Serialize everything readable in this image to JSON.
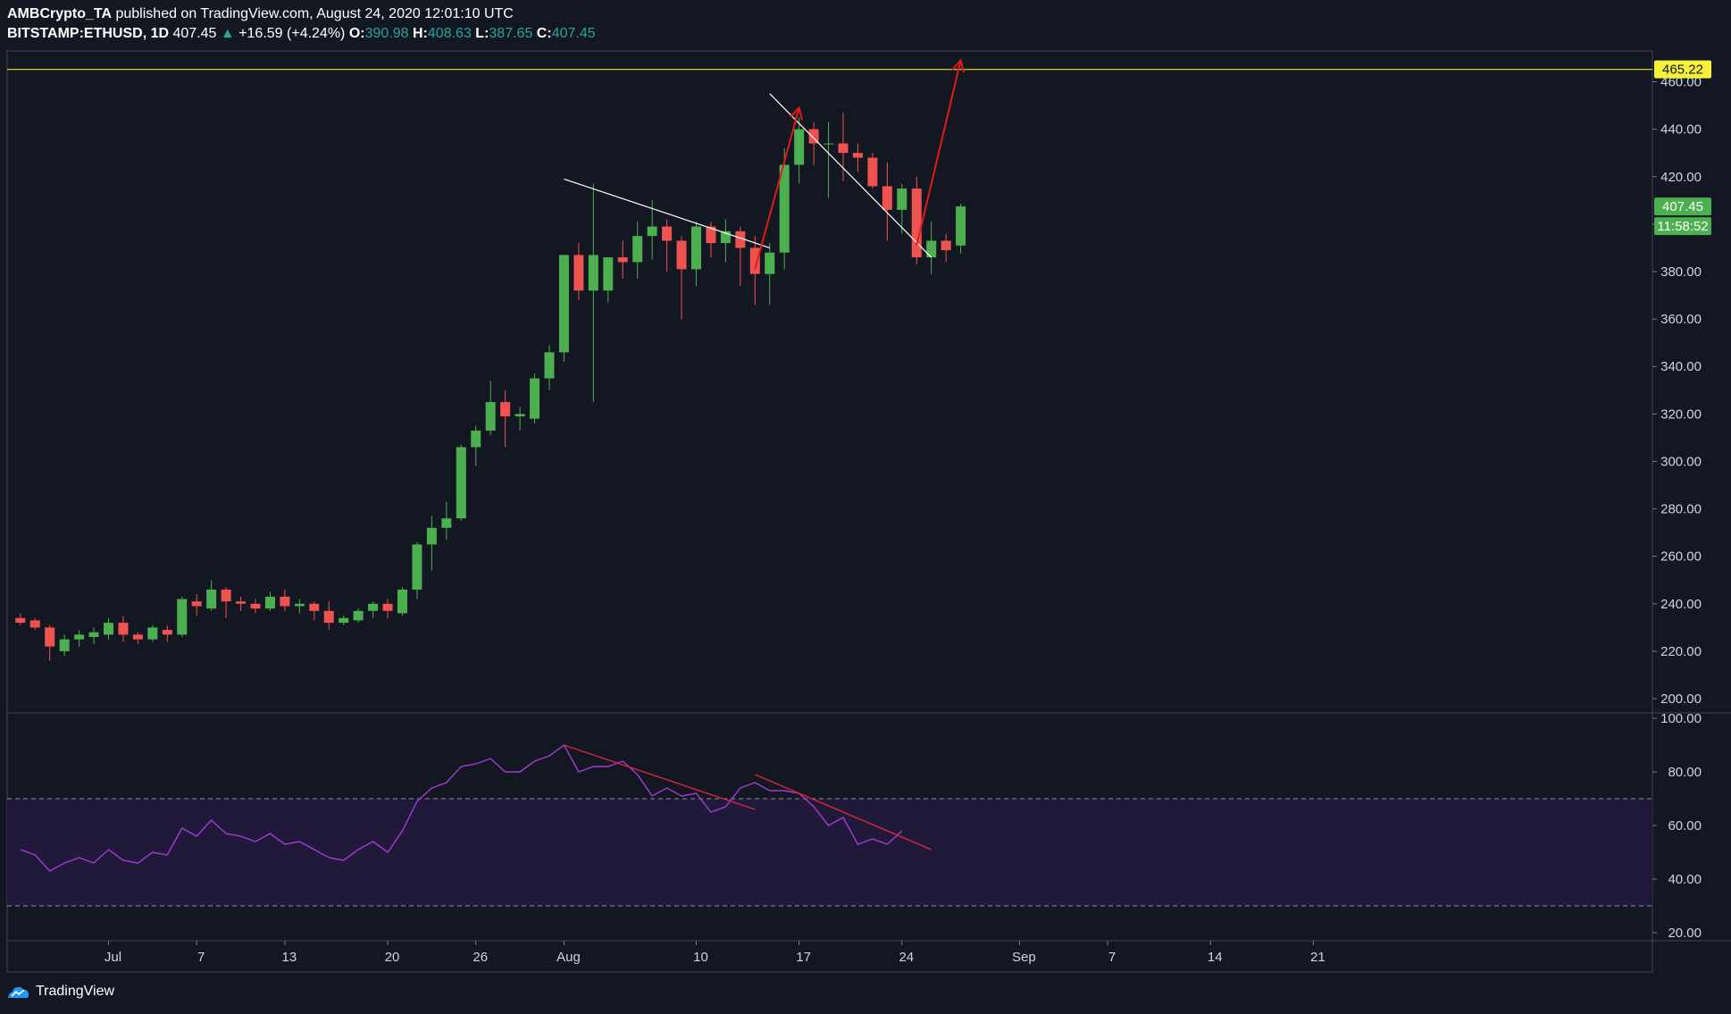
{
  "header": {
    "author": "AMBCrypto_TA",
    "published_text": "published on TradingView.com, August 24, 2020 12:01:10 UTC",
    "symbol": "BITSTAMP:ETHUSD, 1D",
    "last": "407.45",
    "change_arrow": "▲",
    "change": "+16.59 (+4.24%)",
    "o_label": "O:",
    "o_value": "390.98",
    "h_label": "H:",
    "h_value": "408.63",
    "l_label": "L:",
    "l_value": "387.65",
    "c_label": "C:",
    "c_value": "407.45"
  },
  "footer": {
    "brand": "TradingView",
    "logo_icon": "tradingview-logo-icon"
  },
  "colors": {
    "background": "#131722",
    "up": "#4caf50",
    "down": "#ef5350",
    "rsi_line": "#a33ad6",
    "rsi_band": "#21193a",
    "resistance": "#f5e623",
    "arrow": "#e21919",
    "trendline": "#ffffff",
    "rsi_trendline": "#d8263c"
  },
  "chart_data": {
    "type": "candlestick",
    "price_axis": {
      "ticks": [
        "460.00",
        "440.00",
        "420.00",
        "400.00",
        "380.00",
        "360.00",
        "340.00",
        "320.00",
        "300.00",
        "280.00",
        "260.00",
        "240.00",
        "220.00",
        "200.00"
      ],
      "range": [
        194,
        473
      ]
    },
    "time_axis": {
      "ticks": [
        {
          "label": "Jul",
          "day": 0
        },
        {
          "label": "7",
          "day": 6
        },
        {
          "label": "13",
          "day": 12
        },
        {
          "label": "20",
          "day": 19
        },
        {
          "label": "26",
          "day": 25
        },
        {
          "label": "Aug",
          "day": 31
        },
        {
          "label": "10",
          "day": 40
        },
        {
          "label": "17",
          "day": 47
        },
        {
          "label": "24",
          "day": 54
        },
        {
          "label": "Sep",
          "day": 62
        },
        {
          "label": "7",
          "day": 68
        },
        {
          "label": "14",
          "day": 75
        },
        {
          "label": "21",
          "day": 82
        }
      ]
    },
    "candles_start_day": -6,
    "candles": [
      [
        234,
        236,
        231,
        232
      ],
      [
        233,
        234,
        229,
        230
      ],
      [
        230,
        231,
        216,
        222
      ],
      [
        220,
        227,
        218,
        225
      ],
      [
        225,
        229,
        222,
        227
      ],
      [
        226,
        230,
        223,
        228
      ],
      [
        227,
        234,
        225,
        232
      ],
      [
        232,
        235,
        224,
        227
      ],
      [
        227,
        228,
        223,
        225
      ],
      [
        225,
        231,
        224,
        230
      ],
      [
        229,
        231,
        224,
        227
      ],
      [
        227,
        243,
        226,
        242
      ],
      [
        241,
        244,
        235,
        239
      ],
      [
        238,
        250,
        237,
        246
      ],
      [
        246,
        247,
        234,
        241
      ],
      [
        241,
        243,
        237,
        240
      ],
      [
        240,
        242,
        236,
        238
      ],
      [
        238,
        245,
        237,
        243
      ],
      [
        243,
        246,
        237,
        239
      ],
      [
        239,
        242,
        236,
        240
      ],
      [
        240,
        241,
        233,
        237
      ],
      [
        237,
        241,
        229,
        232
      ],
      [
        232,
        235,
        231,
        234
      ],
      [
        233,
        238,
        232,
        237
      ],
      [
        237,
        241,
        234,
        240
      ],
      [
        240,
        242,
        234,
        237
      ],
      [
        236,
        247,
        235,
        246
      ],
      [
        246,
        266,
        242,
        265
      ],
      [
        265,
        277,
        254,
        272
      ],
      [
        272,
        283,
        267,
        276
      ],
      [
        276,
        307,
        275,
        306
      ],
      [
        306,
        315,
        298,
        313
      ],
      [
        313,
        334,
        311,
        325
      ],
      [
        325,
        330,
        306,
        319
      ],
      [
        319,
        323,
        313,
        320
      ],
      [
        318,
        337,
        316,
        335
      ],
      [
        335,
        349,
        330,
        346
      ],
      [
        346,
        387,
        342,
        387
      ],
      [
        387,
        392,
        368,
        372
      ],
      [
        372,
        417,
        325,
        387
      ],
      [
        372,
        386,
        367,
        386
      ],
      [
        386,
        393,
        377,
        384
      ],
      [
        384,
        401,
        377,
        395
      ],
      [
        395,
        410,
        385,
        399
      ],
      [
        399,
        402,
        380,
        393
      ],
      [
        393,
        395,
        360,
        381
      ],
      [
        381,
        401,
        374,
        399
      ],
      [
        399,
        401,
        386,
        392
      ],
      [
        392,
        402,
        384,
        397
      ],
      [
        397,
        399,
        374,
        390
      ],
      [
        390,
        395,
        366,
        379
      ],
      [
        379,
        392,
        366,
        388
      ],
      [
        388,
        432,
        381,
        425
      ],
      [
        425,
        445,
        417,
        440
      ],
      [
        440,
        443,
        425,
        434
      ],
      [
        434,
        443,
        411,
        434
      ],
      [
        434,
        447,
        418,
        430
      ],
      [
        430,
        434,
        422,
        428
      ],
      [
        428,
        430,
        415,
        416
      ],
      [
        416,
        426,
        393,
        406
      ],
      [
        406,
        417,
        396,
        415
      ],
      [
        415,
        420,
        383,
        386
      ],
      [
        386,
        401,
        379,
        393
      ],
      [
        393,
        396,
        384,
        389
      ],
      [
        390.98,
        408.63,
        387.65,
        407.45
      ]
    ],
    "last_price_tag": "407.45",
    "countdown_tag": "11:58:52",
    "resistance_level": 465.22,
    "resistance_tag": "465.22",
    "trendlines": [
      {
        "from": [
          31,
          419
        ],
        "to": [
          45,
          390
        ]
      },
      {
        "from": [
          45,
          455
        ],
        "to": [
          56,
          386
        ]
      }
    ],
    "arrows": [
      {
        "from": [
          44,
          381
        ],
        "to": [
          47,
          449
        ]
      },
      {
        "from": [
          55,
          391
        ],
        "to": [
          58,
          469
        ]
      }
    ],
    "rsi": {
      "axis_ticks": [
        "100.00",
        "80.00",
        "60.00",
        "40.00",
        "20.00"
      ],
      "range": [
        17,
        102
      ],
      "upper_band": 70,
      "lower_band": 30,
      "values": [
        51,
        49,
        43,
        46,
        48,
        46,
        51,
        47,
        46,
        50,
        49,
        59,
        56,
        62,
        57,
        56,
        54,
        57,
        53,
        54,
        51,
        48,
        47,
        51,
        54,
        50,
        58,
        69,
        74,
        76,
        82,
        83,
        85,
        80,
        80,
        84,
        86,
        90,
        80,
        82,
        82,
        84,
        79,
        71,
        74,
        71,
        72,
        65,
        67,
        74,
        76,
        73,
        73,
        72,
        67,
        60,
        63,
        53,
        55,
        53,
        58
      ],
      "trendlines": [
        {
          "from": [
            31,
            90
          ],
          "to": [
            44,
            66
          ]
        },
        {
          "from": [
            44,
            79
          ],
          "to": [
            56,
            51
          ]
        }
      ]
    }
  }
}
